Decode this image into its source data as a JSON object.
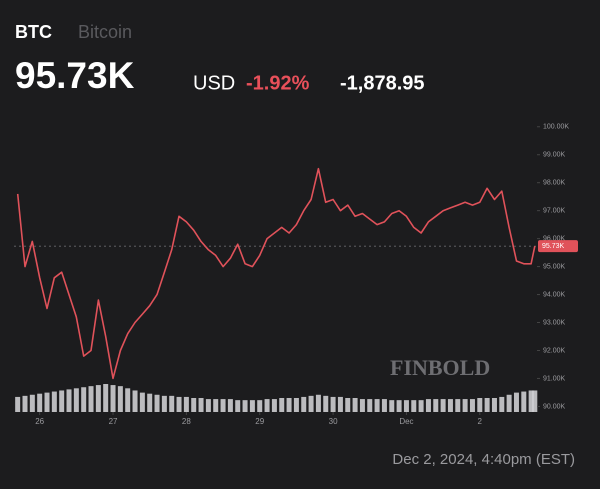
{
  "header": {
    "symbol": "BTC",
    "name": "Bitcoin",
    "price": "95.73K",
    "currency": "USD",
    "change_pct": "-1.92%",
    "change_abs": "-1,878.95"
  },
  "footer": "Dec 2, 2024, 4:40pm (EST)",
  "watermark": "FINBOLD",
  "chart_data": {
    "type": "line",
    "x": [
      25.7,
      25.8,
      25.9,
      26.0,
      26.1,
      26.2,
      26.3,
      26.4,
      26.5,
      26.6,
      26.7,
      26.8,
      26.9,
      27.0,
      27.1,
      27.2,
      27.3,
      27.4,
      27.5,
      27.6,
      27.7,
      27.8,
      27.9,
      28.0,
      28.1,
      28.2,
      28.3,
      28.4,
      28.5,
      28.6,
      28.7,
      28.8,
      28.9,
      29.0,
      29.1,
      29.2,
      29.3,
      29.4,
      29.5,
      29.6,
      29.7,
      29.8,
      29.9,
      30.0,
      30.1,
      30.2,
      30.3,
      30.4,
      30.5,
      30.6,
      30.7,
      30.8,
      30.9,
      31.0,
      31.1,
      31.2,
      31.3,
      31.4,
      31.5,
      31.6,
      31.7,
      31.8,
      31.9,
      32.0,
      32.1,
      32.2,
      32.3,
      32.4,
      32.5,
      32.6,
      32.7,
      32.75
    ],
    "series": [
      {
        "name": "BTC",
        "color": "#e0525a",
        "values": [
          97.6,
          95.0,
          95.9,
          94.6,
          93.5,
          94.6,
          94.8,
          94.0,
          93.2,
          91.8,
          92.0,
          93.8,
          92.5,
          91.0,
          92.0,
          92.6,
          93.0,
          93.3,
          93.6,
          94.0,
          94.8,
          95.6,
          96.8,
          96.6,
          96.3,
          95.9,
          95.6,
          95.4,
          95.0,
          95.3,
          95.8,
          95.1,
          95.0,
          95.4,
          96.0,
          96.2,
          96.4,
          96.2,
          96.5,
          97.0,
          97.4,
          98.5,
          97.3,
          97.4,
          97.0,
          97.2,
          96.8,
          96.9,
          96.7,
          96.5,
          96.6,
          96.9,
          97.0,
          96.8,
          96.4,
          96.2,
          96.6,
          96.8,
          97.0,
          97.1,
          97.2,
          97.3,
          97.2,
          97.3,
          97.8,
          97.4,
          97.7,
          96.4,
          95.2,
          95.1,
          95.1,
          95.73
        ]
      }
    ],
    "volume": [
      14,
      15,
      16,
      17,
      18,
      19,
      20,
      21,
      22,
      23,
      24,
      25,
      26,
      25,
      24,
      22,
      20,
      18,
      17,
      16,
      15,
      15,
      14,
      14,
      13,
      13,
      12,
      12,
      12,
      12,
      11,
      11,
      11,
      11,
      12,
      12,
      13,
      13,
      13,
      14,
      15,
      16,
      15,
      14,
      14,
      13,
      13,
      12,
      12,
      12,
      12,
      11,
      11,
      11,
      11,
      11,
      12,
      12,
      12,
      12,
      12,
      12,
      12,
      13,
      13,
      13,
      14,
      16,
      18,
      19,
      20,
      20
    ],
    "volume_color": "#d8d8dc",
    "xlim": [
      25.65,
      32.78
    ],
    "xticks": [
      26,
      27,
      28,
      29,
      30,
      {
        "value": 31,
        "label": "Dec"
      },
      {
        "value": 32,
        "label": "2"
      }
    ],
    "ylim": [
      89.8,
      100.6
    ],
    "yticks": [
      {
        "value": 90,
        "label": "90.00K"
      },
      {
        "value": 91,
        "label": "91.00K"
      },
      {
        "value": 92,
        "label": "92.00K"
      },
      {
        "value": 93,
        "label": "93.00K"
      },
      {
        "value": 94,
        "label": "94.00K"
      },
      {
        "value": 95,
        "label": "95.00K"
      },
      {
        "value": 96,
        "label": "96.00K"
      },
      {
        "value": 97,
        "label": "97.00K"
      },
      {
        "value": 98,
        "label": "98.00K"
      },
      {
        "value": 99,
        "label": "99.00K"
      },
      {
        "value": 100,
        "label": "100.00K"
      }
    ],
    "last_price": {
      "value": 95.73,
      "label": "95.73K"
    },
    "grid": false
  }
}
